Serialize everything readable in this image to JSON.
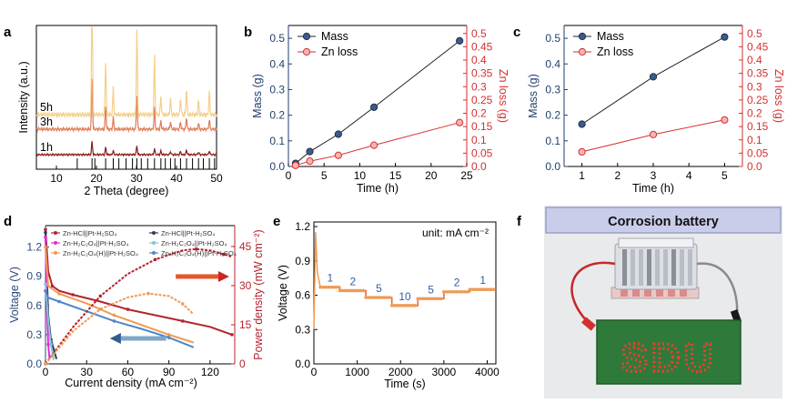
{
  "colors": {
    "mass": "#1f3f6e",
    "zn": "#d62f2f",
    "xrd_1h": "#8b1d1d",
    "xrd_3h": "#e07a55",
    "xrd_5h": "#f4cf8a",
    "hcl": "#b5232e",
    "ox": "#2b3a5c",
    "h2c2o4": "#e52ad6",
    "ox_half": "#86c3d8",
    "h2c2o4_h": "#ef9a54",
    "ox_h": "#4f86c6",
    "ref": "#000000",
    "inset_frame": "#c7cbe0",
    "inset_bg": "#dfe3ee",
    "board": "#2f7a3b",
    "led": "#ff2a1a",
    "wire": "#c62828"
  },
  "chart_data": [
    {
      "panel": "a",
      "type": "line",
      "xlabel": "2 Theta (degree)",
      "ylabel": "Intensity (a.u.)",
      "xlim": [
        5,
        50
      ],
      "xticks": [
        10,
        20,
        30,
        40,
        50
      ],
      "series": [
        {
          "name": "1h",
          "peaks": [
            [
              18.9,
              26
            ],
            [
              22.3,
              14
            ],
            [
              24.2,
              8
            ],
            [
              30.1,
              18
            ],
            [
              34.5,
              12
            ],
            [
              36.1,
              7
            ],
            [
              38.5,
              6
            ],
            [
              41.0,
              6
            ],
            [
              42.5,
              9
            ],
            [
              45.5,
              5
            ],
            [
              48.2,
              8
            ]
          ]
        },
        {
          "name": "3h",
          "peaks": [
            [
              18.9,
              62
            ],
            [
              22.3,
              27
            ],
            [
              24.2,
              14
            ],
            [
              30.1,
              42
            ],
            [
              34.5,
              26
            ],
            [
              36.1,
              10
            ],
            [
              38.5,
              9
            ],
            [
              41.0,
              9
            ],
            [
              42.5,
              14
            ],
            [
              45.5,
              7
            ],
            [
              48.2,
              12
            ]
          ]
        },
        {
          "name": "5h",
          "peaks": [
            [
              18.9,
              100
            ],
            [
              22.3,
              40
            ],
            [
              24.2,
              20
            ],
            [
              30.1,
              66
            ],
            [
              34.5,
              44
            ],
            [
              36.1,
              14
            ],
            [
              38.5,
              12
            ],
            [
              41.0,
              13
            ],
            [
              42.5,
              20
            ],
            [
              45.5,
              10
            ],
            [
              48.2,
              18
            ]
          ]
        }
      ],
      "reference_lines": [
        15.2,
        18.9,
        19.6,
        22.3,
        24.2,
        25.6,
        27.4,
        29.0,
        30.1,
        31.2,
        32.8,
        34.5,
        36.1,
        37.2,
        38.5,
        39.6,
        41.0,
        42.5,
        44.0,
        45.5,
        46.7,
        48.2,
        49.5
      ]
    },
    {
      "panel": "b",
      "type": "line",
      "xlabel": "Time (h)",
      "ylabel": "Mass (g)",
      "y2label": "Zn loss (g)",
      "xlim": [
        0,
        25
      ],
      "ylim": [
        0,
        0.55
      ],
      "y2lim": [
        0,
        0.53
      ],
      "xticks": [
        0,
        5,
        10,
        15,
        20,
        25
      ],
      "yticks": [
        0.0,
        0.1,
        0.2,
        0.3,
        0.4,
        0.5
      ],
      "y2ticks": [
        0.0,
        0.05,
        0.1,
        0.15,
        0.2,
        0.25,
        0.3,
        0.35,
        0.4,
        0.45,
        0.5
      ],
      "legend": "top-left",
      "series": [
        {
          "name": "Mass",
          "axis": "left",
          "x": [
            1,
            3,
            7,
            12,
            24
          ],
          "y": [
            0.012,
            0.058,
            0.126,
            0.231,
            0.49
          ]
        },
        {
          "name": "Zn loss",
          "axis": "right",
          "x": [
            1,
            3,
            7,
            12,
            24
          ],
          "y": [
            0.004,
            0.02,
            0.042,
            0.08,
            0.165
          ]
        }
      ]
    },
    {
      "panel": "c",
      "type": "line",
      "xlabel": "Time (h)",
      "ylabel": "Mass (g)",
      "y2label": "Zn loss (g)",
      "xlim": [
        0.5,
        5.5
      ],
      "ylim": [
        0,
        0.55
      ],
      "y2lim": [
        0,
        0.53
      ],
      "xticks": [
        1,
        2,
        3,
        4,
        5
      ],
      "yticks": [
        0.0,
        0.1,
        0.2,
        0.3,
        0.4,
        0.5
      ],
      "y2ticks": [
        0.0,
        0.05,
        0.1,
        0.15,
        0.2,
        0.25,
        0.3,
        0.35,
        0.4,
        0.45,
        0.5
      ],
      "legend": "top-left",
      "series": [
        {
          "name": "Mass",
          "axis": "left",
          "x": [
            1,
            3,
            5
          ],
          "y": [
            0.165,
            0.35,
            0.505
          ]
        },
        {
          "name": "Zn loss",
          "axis": "right",
          "x": [
            1,
            3,
            5
          ],
          "y": [
            0.055,
            0.12,
            0.175
          ]
        }
      ]
    },
    {
      "panel": "d",
      "type": "line",
      "xlabel": "Current density (mA cm⁻²)",
      "ylabel": "Voltage (V)",
      "y2label": "Power density (mW cm⁻²)",
      "xlim": [
        0,
        138
      ],
      "ylim": [
        0,
        1.42
      ],
      "y2lim": [
        0,
        53
      ],
      "xticks": [
        0,
        30,
        60,
        90,
        120
      ],
      "yticks": [
        0.0,
        0.3,
        0.6,
        0.9,
        1.2
      ],
      "y2ticks": [
        0,
        15,
        30,
        45
      ],
      "legend": "top-left",
      "legend_entries": [
        {
          "label": "Zn-HCl||Pt-H₂SO₄",
          "key": "hcl"
        },
        {
          "label": "Zn-HCl||Pt-H₂SO₄",
          "key": "ox"
        },
        {
          "label": "Zn-H₂C₂O₄||Pt-H₂SO₄",
          "key": "h2c2o4"
        },
        {
          "label": "Zn-H₂C₂O₄||Pt-H₂SO₄",
          "key": "ox_half"
        },
        {
          "label": "Zn-H₂C₂O₄(H)||Pt-H₂SO₄",
          "key": "h2c2o4_h"
        },
        {
          "label": "Zn-H₂C₂O₄(H)||Pt-H₂SO₄",
          "key": "ox_h"
        }
      ],
      "series": [
        {
          "key": "hcl",
          "kind": "voltage",
          "x": [
            0,
            2,
            5,
            10,
            20,
            40,
            60,
            80,
            100,
            120,
            136
          ],
          "y": [
            1.38,
            0.95,
            0.8,
            0.75,
            0.71,
            0.64,
            0.56,
            0.5,
            0.44,
            0.38,
            0.3
          ]
        },
        {
          "key": "ox",
          "kind": "voltage",
          "x": [
            0,
            2,
            4,
            8
          ],
          "y": [
            1.35,
            0.5,
            0.25,
            0.05
          ]
        },
        {
          "key": "h2c2o4",
          "kind": "voltage",
          "x": [
            0,
            1,
            2,
            3
          ],
          "y": [
            1.3,
            0.6,
            0.2,
            0.05
          ]
        },
        {
          "key": "ox_half",
          "kind": "voltage",
          "x": [
            0,
            2,
            4,
            6
          ],
          "y": [
            0.82,
            0.45,
            0.2,
            0.04
          ]
        },
        {
          "key": "h2c2o4_h",
          "kind": "voltage",
          "x": [
            0,
            2,
            10,
            30,
            50,
            70,
            90,
            108
          ],
          "y": [
            1.2,
            0.8,
            0.72,
            0.62,
            0.5,
            0.4,
            0.3,
            0.22
          ]
        },
        {
          "key": "ox_h",
          "kind": "voltage",
          "x": [
            0,
            2,
            10,
            30,
            50,
            70,
            90,
            108
          ],
          "y": [
            0.75,
            0.68,
            0.64,
            0.54,
            0.44,
            0.36,
            0.27,
            0.17
          ]
        },
        {
          "key": "hcl",
          "kind": "power",
          "x": [
            0,
            20,
            40,
            60,
            80,
            100,
            110,
            120,
            130,
            136
          ],
          "y": [
            0,
            14,
            26,
            34.5,
            40,
            43.5,
            44,
            43.5,
            42,
            41
          ]
        },
        {
          "key": "h2c2o4_h",
          "kind": "power",
          "x": [
            0,
            20,
            40,
            60,
            75,
            90,
            100,
            108
          ],
          "y": [
            0,
            12.5,
            21,
            25.5,
            27,
            26,
            23,
            19
          ]
        }
      ]
    },
    {
      "panel": "e",
      "type": "line",
      "xlabel": "Time (s)",
      "ylabel": "Voltage (V)",
      "annotation": "unit: mA cm⁻²",
      "xlim": [
        0,
        4200
      ],
      "ylim": [
        0,
        1.24
      ],
      "xticks": [
        0,
        1000,
        2000,
        3000,
        4000
      ],
      "yticks": [
        0.0,
        0.3,
        0.6,
        0.9,
        1.2
      ],
      "step_labels": [
        "1",
        "2",
        "5",
        "10",
        "5",
        "2",
        "1"
      ],
      "steps": [
        {
          "t0": 150,
          "t1": 600,
          "v": 0.67
        },
        {
          "t0": 600,
          "t1": 1200,
          "v": 0.64
        },
        {
          "t0": 1200,
          "t1": 1800,
          "v": 0.58
        },
        {
          "t0": 1800,
          "t1": 2400,
          "v": 0.51
        },
        {
          "t0": 2400,
          "t1": 3000,
          "v": 0.57
        },
        {
          "t0": 3000,
          "t1": 3600,
          "v": 0.63
        },
        {
          "t0": 3600,
          "t1": 4200,
          "v": 0.65
        }
      ],
      "spike": {
        "t": [
          0,
          40,
          80,
          150
        ],
        "v": [
          0.3,
          1.15,
          0.8,
          0.67
        ]
      }
    }
  ],
  "panels": {
    "a": "a",
    "b": "b",
    "c": "c",
    "d": "d",
    "e": "e",
    "f": "f"
  },
  "photo": {
    "title": "Corrosion battery",
    "board_text": "SDU"
  }
}
